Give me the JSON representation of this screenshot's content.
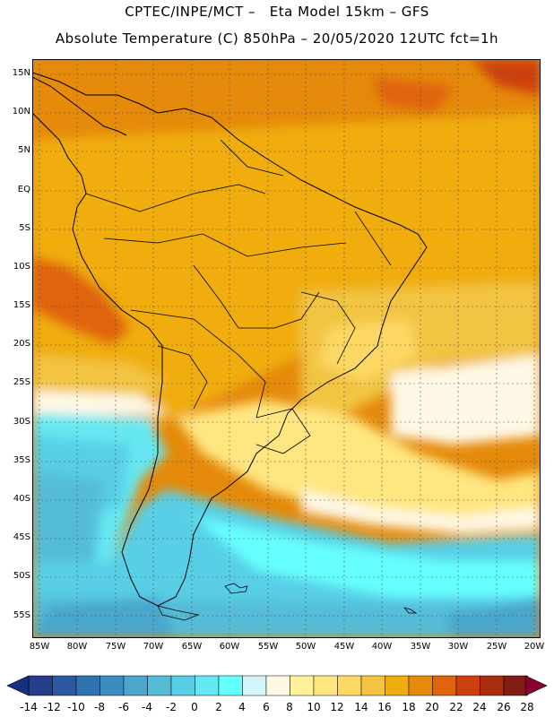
{
  "title_line1": "CPTEC/INPE/MCT –   Eta Model 15km – GFS",
  "title_line2": "Absolute Temperature (C) 850hPa – 20/05/2020 12UTC fct=1h",
  "lat_labels": [
    "15N",
    "10N",
    "5N",
    "EQ",
    "5S",
    "10S",
    "15S",
    "20S",
    "25S",
    "30S",
    "35S",
    "40S",
    "45S",
    "50S",
    "55S"
  ],
  "lon_labels": [
    "85W",
    "80W",
    "75W",
    "70W",
    "65W",
    "60W",
    "55W",
    "50W",
    "45W",
    "40W",
    "35W",
    "30W",
    "25W",
    "20W"
  ],
  "colorbar": {
    "labels": [
      "-14",
      "-12",
      "-10",
      "-8",
      "-6",
      "-4",
      "-2",
      "0",
      "2",
      "4",
      "6",
      "8",
      "10",
      "12",
      "14",
      "16",
      "18",
      "20",
      "22",
      "24",
      "26",
      "28"
    ],
    "colors": [
      "#253e8c",
      "#2c5aa2",
      "#3073b0",
      "#3b8cc0",
      "#4aa6cc",
      "#55bcd8",
      "#59cfe6",
      "#66e8f2",
      "#66ffff",
      "#d3f6fa",
      "#fff8e6",
      "#fff09a",
      "#ffe680",
      "#fcd864",
      "#f2c442",
      "#f0ad10",
      "#e58a0a",
      "#e0640c",
      "#cc4010",
      "#a82c0e",
      "#801e14"
    ],
    "low_color": "#183080",
    "high_color": "#8a0030"
  },
  "map_data": {
    "domain": {
      "lon": [
        -86,
        -19
      ],
      "lat": [
        -59,
        16
      ]
    },
    "field": "Absolute Temperature (C) 850hPa"
  },
  "colors": {
    "background": "#ffffff",
    "frame": "#000000",
    "grid": "#555555",
    "border": "#000000"
  }
}
